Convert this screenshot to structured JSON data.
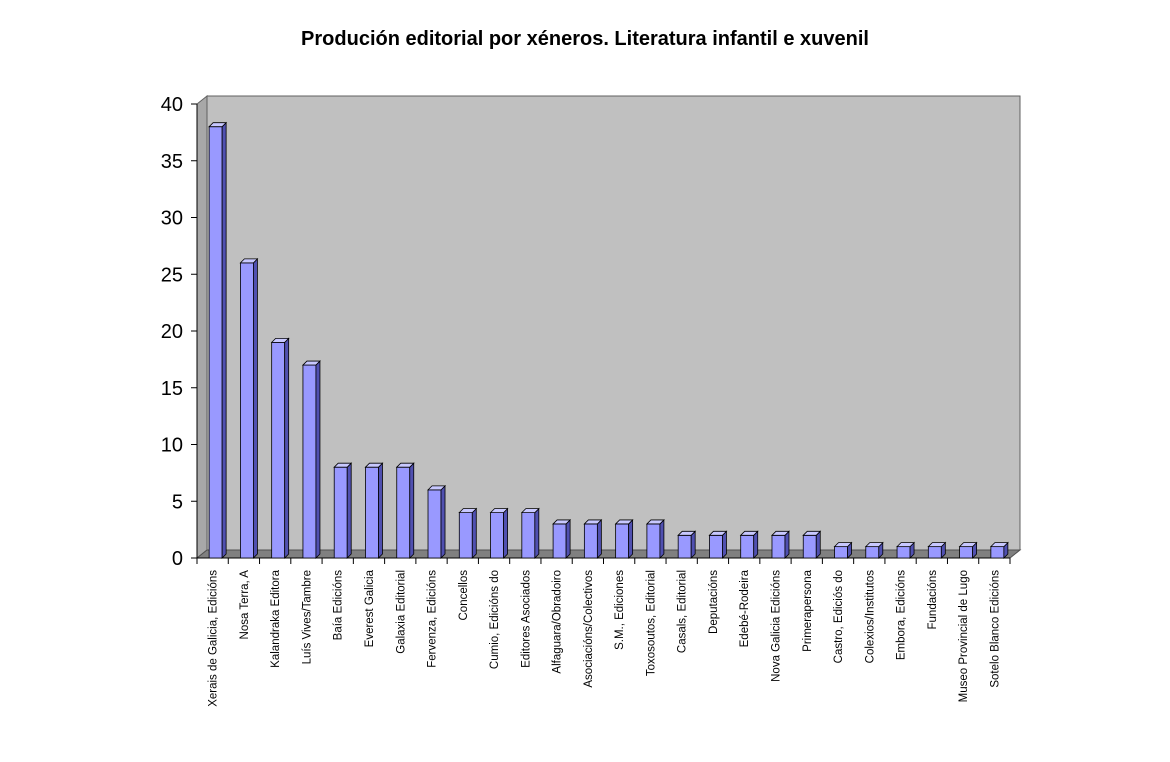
{
  "chart_data": {
    "type": "bar",
    "title": "Produción editorial por xéneros. Literatura infantil e xuvenil",
    "xlabel": "",
    "ylabel": "",
    "ylim": [
      0,
      40
    ],
    "yticks": [
      0,
      5,
      10,
      15,
      20,
      25,
      30,
      35,
      40
    ],
    "grid": false,
    "legend": "none",
    "style": "3d",
    "colors": {
      "bar_front": "#9999ff",
      "bar_side": "#5050b0",
      "bar_top": "#c8c8ff",
      "plot_wall": "#c0c0c0",
      "plot_floor": "#808080"
    },
    "categories": [
      "Xerais de Galicia, Edicións",
      "Nosa Terra, A",
      "Kalandraka Editora",
      "Luís Vives/Tambre",
      "Baía Edicións",
      "Everest Galicia",
      "Galaxia Editorial",
      "Fervenza, Edicións",
      "Concellos",
      "Cumio, Edicións do",
      "Editores Asociados",
      "Alfaguara/Obradoiro",
      "Asociacións/Colectivos",
      "S.M., Ediciones",
      "Toxosoutos, Editorial",
      "Casals, Editorial",
      "Deputacións",
      "Edebé-Rodeira",
      "Nova Galicia Edicións",
      "Primerapersona",
      "Castro, Ediciós do",
      "Colexios/Institutos",
      "Embora, Edicións",
      "Fundacións",
      "Museo Provincial de Lugo",
      "Sotelo Blanco Edicións"
    ],
    "values": [
      38,
      26,
      19,
      17,
      8,
      8,
      8,
      6,
      4,
      4,
      4,
      3,
      3,
      3,
      3,
      2,
      2,
      2,
      2,
      2,
      1,
      1,
      1,
      1,
      1,
      1
    ]
  }
}
